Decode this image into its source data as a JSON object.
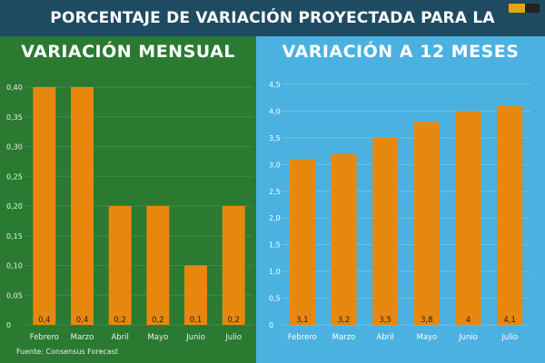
{
  "header": {
    "title": "PORCENTAJE DE VARIACIÓN PROYECTADA PARA LA INFLACIÓN"
  },
  "source": "Fuente: Consensus Forecast",
  "colors": {
    "bar": "#e8870e",
    "left_bg": "#2a7a32",
    "right_bg": "#4ab1e1",
    "header_bg": "#1f4b62"
  },
  "chart_data": [
    {
      "type": "bar",
      "title": "VARIACIÓN MENSUAL",
      "categories": [
        "Febrero",
        "Marzo",
        "Abril",
        "Mayo",
        "Junio",
        "Julio"
      ],
      "values": [
        0.4,
        0.4,
        0.2,
        0.2,
        0.1,
        0.2
      ],
      "value_labels": [
        "0,4",
        "0,4",
        "0,2",
        "0,2",
        "0,1",
        "0,2"
      ],
      "yticks": [
        0,
        0.05,
        0.1,
        0.15,
        0.2,
        0.25,
        0.3,
        0.35,
        0.4
      ],
      "ytick_labels": [
        "0",
        "0,05",
        "0,10",
        "0,15",
        "0,20",
        "0,25",
        "0,30",
        "0,35",
        "0,40"
      ],
      "ylim": [
        0,
        0.4
      ],
      "grid": true
    },
    {
      "type": "bar",
      "title": "VARIACIÓN A 12 MESES",
      "categories": [
        "Febrero",
        "Marzo",
        "Abril",
        "Mayo",
        "Junio",
        "Julio"
      ],
      "values": [
        3.1,
        3.2,
        3.5,
        3.8,
        4.0,
        4.1
      ],
      "value_labels": [
        "3,1",
        "3,2",
        "3,5",
        "3,8",
        "4",
        "4,1"
      ],
      "yticks": [
        0,
        0.5,
        1.0,
        1.5,
        2.0,
        2.5,
        3.0,
        3.5,
        4.0,
        4.5
      ],
      "ytick_labels": [
        "0",
        "0,5",
        "1,0",
        "1,5",
        "2,0",
        "2,5",
        "3,0",
        "3,5",
        "4,0",
        "4,5"
      ],
      "ylim": [
        0,
        4.5
      ],
      "grid": true
    }
  ]
}
